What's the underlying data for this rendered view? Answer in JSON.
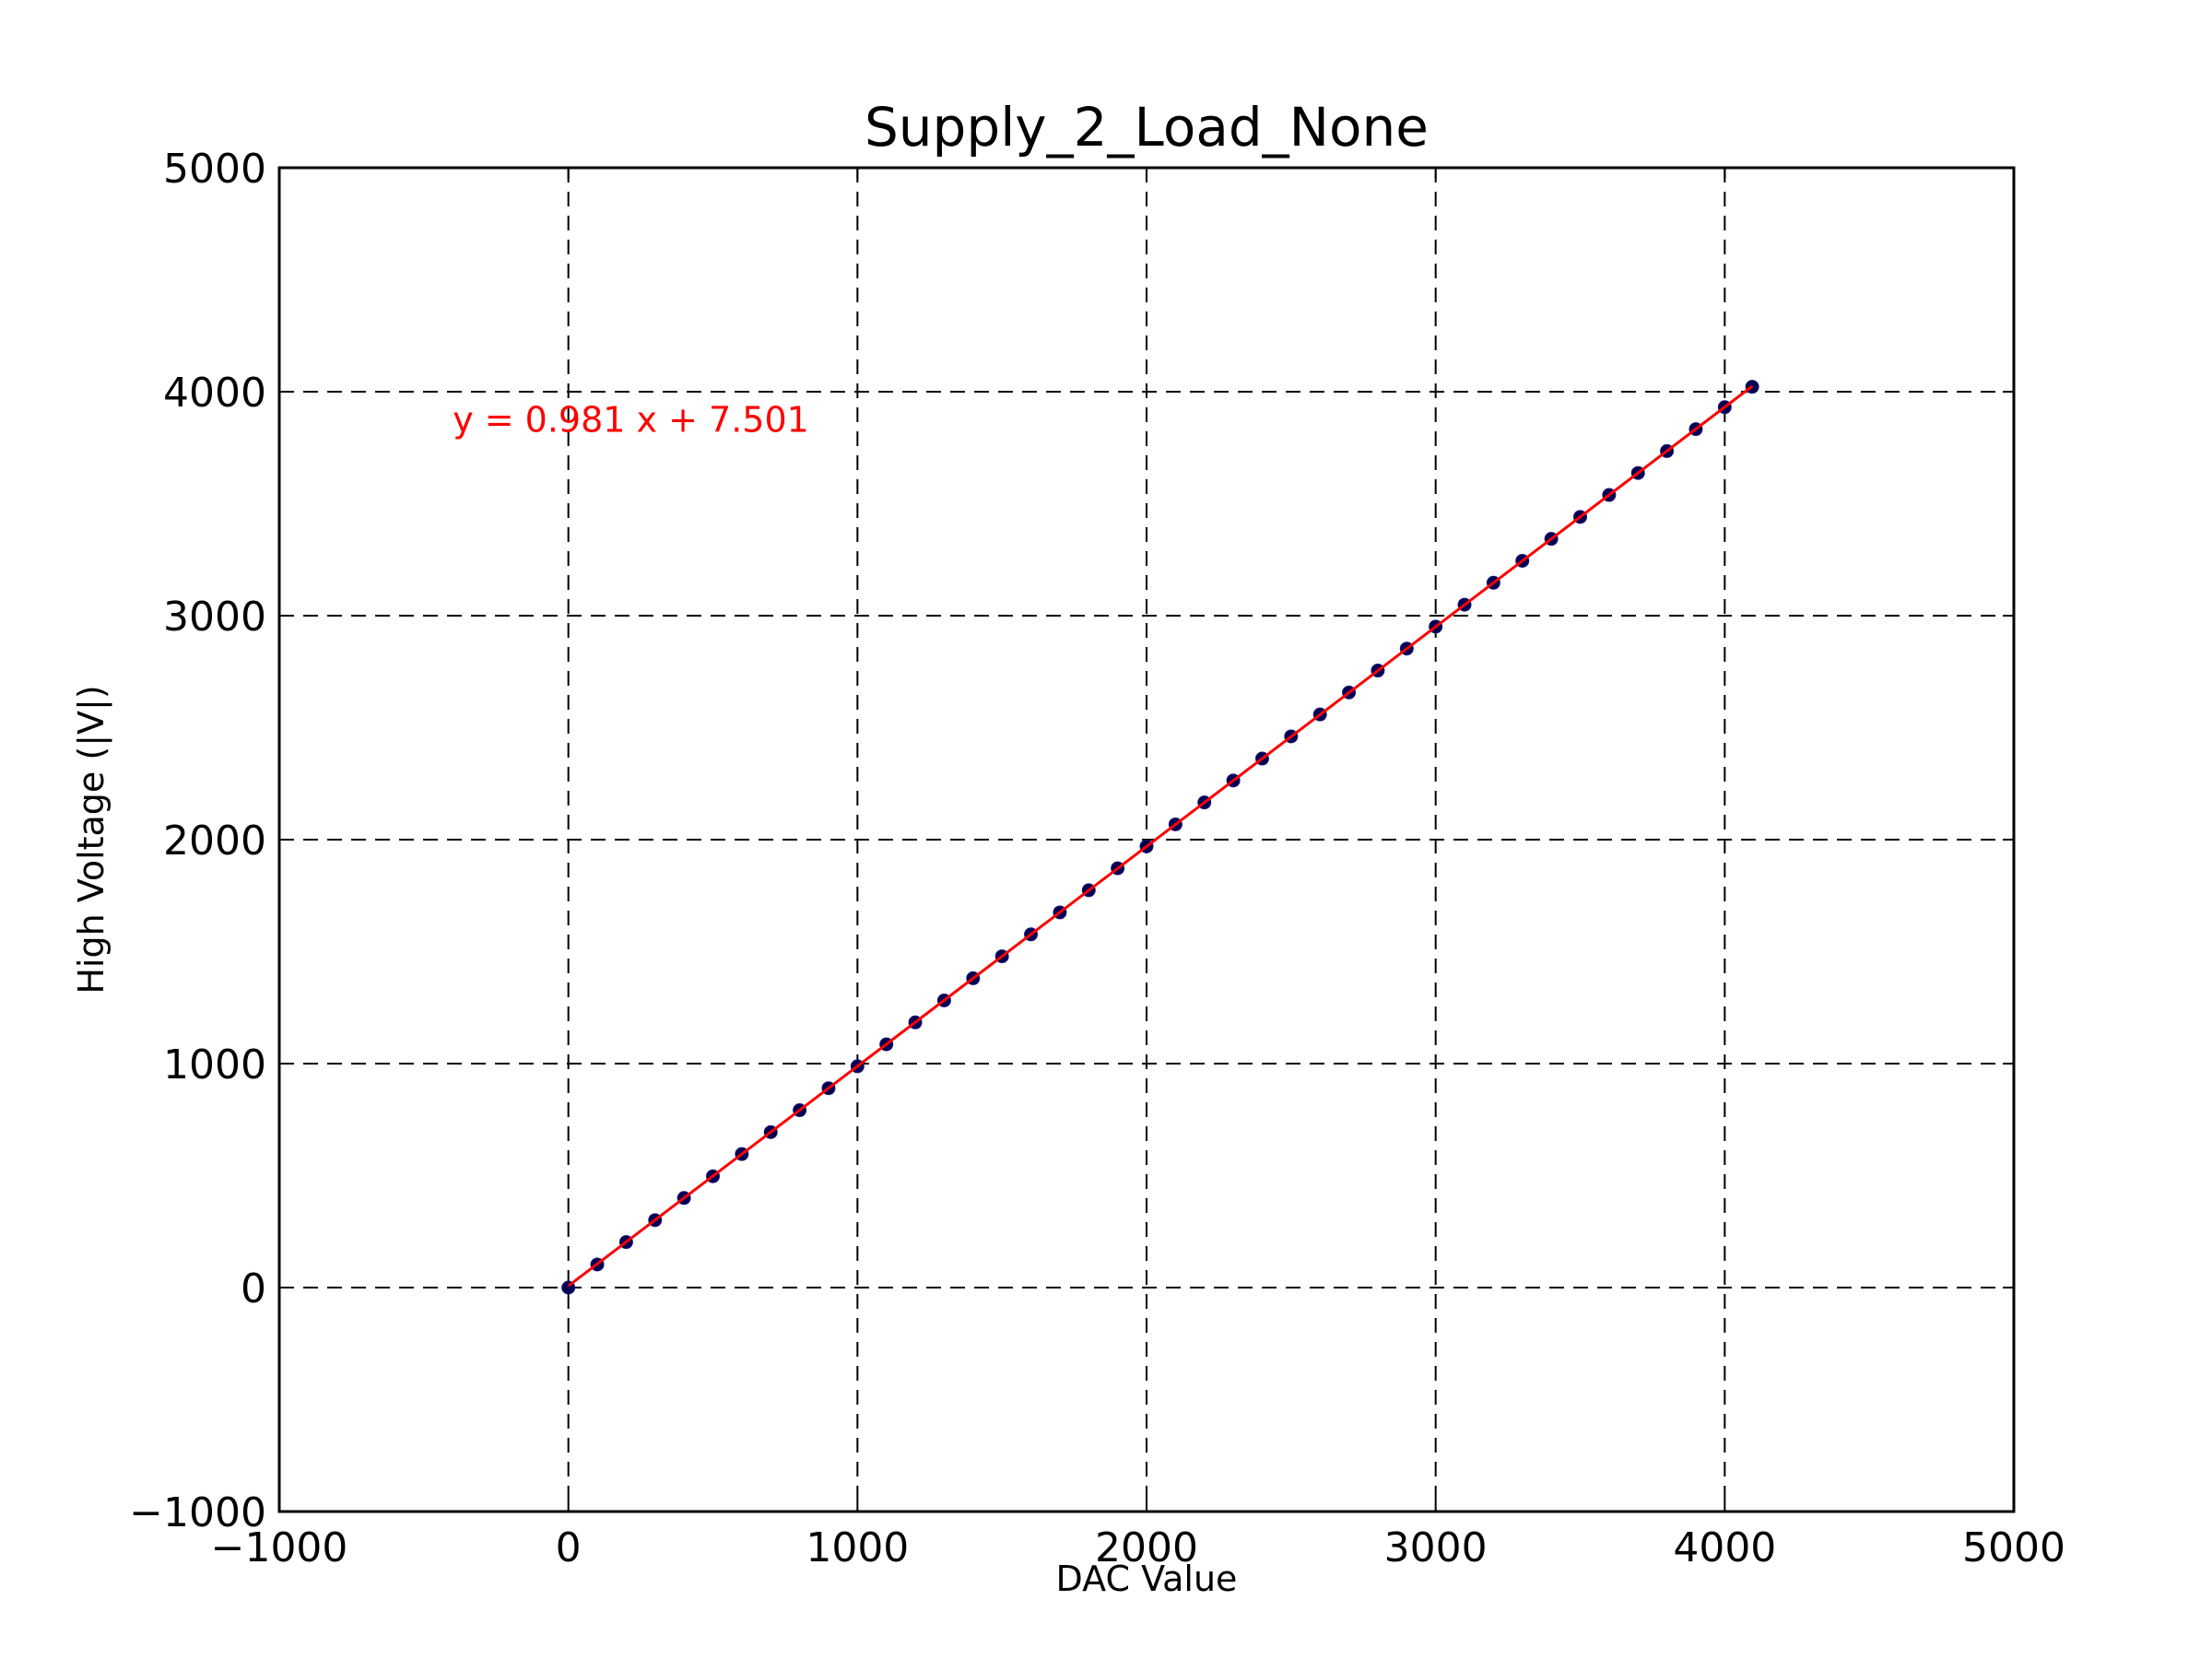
{
  "chart_data": {
    "type": "scatter",
    "title": "Supply_2_Load_None",
    "xlabel": "DAC Value",
    "ylabel": "High Voltage (|V|)",
    "xlim": [
      -1000,
      5000
    ],
    "ylim": [
      -1000,
      5000
    ],
    "x_ticks": [
      -1000,
      0,
      1000,
      2000,
      3000,
      4000,
      5000
    ],
    "y_ticks": [
      -1000,
      0,
      1000,
      2000,
      3000,
      4000,
      5000
    ],
    "x_tick_labels": [
      "−1000",
      "0",
      "1000",
      "2000",
      "3000",
      "4000",
      "5000"
    ],
    "y_tick_labels": [
      "−1000",
      "0",
      "1000",
      "2000",
      "3000",
      "4000",
      "5000"
    ],
    "grid": true,
    "grid_style": "dashed",
    "series": [
      {
        "type": "scatter",
        "color": "#000055",
        "x": [
          0,
          100,
          200,
          300,
          400,
          500,
          600,
          700,
          800,
          900,
          1000,
          1100,
          1200,
          1300,
          1400,
          1500,
          1600,
          1700,
          1800,
          1900,
          2000,
          2100,
          2200,
          2300,
          2400,
          2500,
          2600,
          2700,
          2800,
          2900,
          3000,
          3100,
          3200,
          3300,
          3400,
          3500,
          3600,
          3700,
          3800,
          3900,
          4000,
          4095
        ],
        "y": [
          0,
          103,
          203,
          301,
          400,
          497,
          596,
          694,
          792,
          890,
          988,
          1086,
          1184,
          1282,
          1381,
          1479,
          1577,
          1675,
          1774,
          1872,
          1970,
          2068,
          2166,
          2264,
          2362,
          2461,
          2559,
          2657,
          2755,
          2853,
          2951,
          3049,
          3147,
          3245,
          3343,
          3441,
          3539,
          3637,
          3735,
          3833,
          3931,
          4022
        ]
      },
      {
        "type": "line",
        "color": "#ff0000",
        "slope": 0.981,
        "intercept": 7.501,
        "x_range": [
          0,
          4095
        ]
      }
    ],
    "annotations": [
      {
        "text": "y = 0.981 x + 7.501",
        "x": -400,
        "y": 3820,
        "color": "#ff0000"
      }
    ]
  }
}
